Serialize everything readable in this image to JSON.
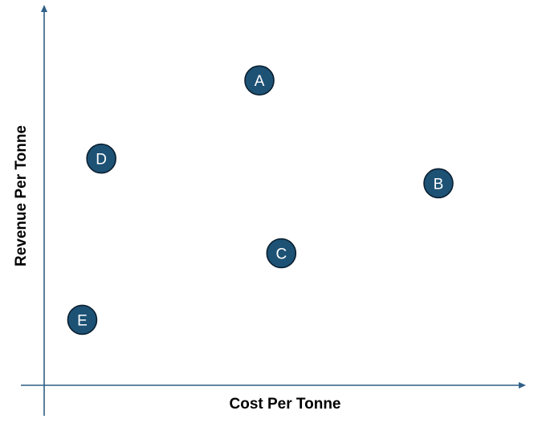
{
  "chart_data": {
    "type": "scatter",
    "title": "",
    "xlabel": "Cost Per Tonne",
    "ylabel": "Revenue Per Tonne",
    "xlim": [
      0,
      100
    ],
    "ylim": [
      0,
      100
    ],
    "grid": false,
    "tick_labels": false,
    "marker_color": "#1d5275",
    "points": [
      {
        "label": "A",
        "x": 45.2,
        "y": 81.5
      },
      {
        "label": "B",
        "x": 82.8,
        "y": 54.0
      },
      {
        "label": "C",
        "x": 49.8,
        "y": 35.3
      },
      {
        "label": "D",
        "x": 12.0,
        "y": 60.6
      },
      {
        "label": "E",
        "x": 8.0,
        "y": 17.5
      }
    ]
  }
}
